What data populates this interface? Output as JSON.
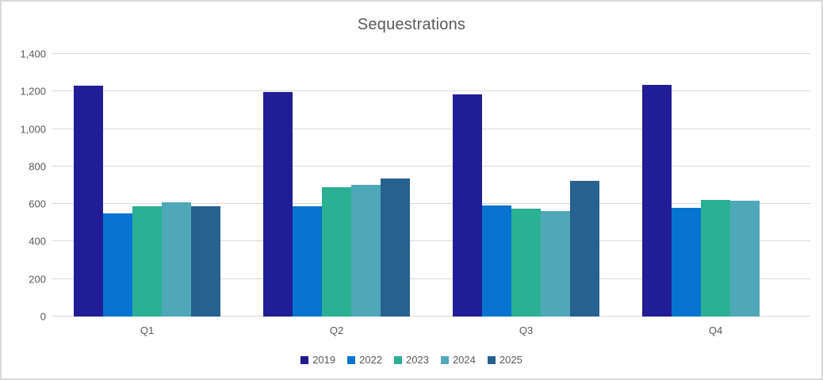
{
  "title": "Sequestrations",
  "colors": {
    "grid": "#d9d9d9",
    "text": "#595959",
    "background": "#ffffff",
    "border": "#d9d9d9"
  },
  "chart_data": {
    "type": "bar",
    "title": "Sequestrations",
    "categories": [
      "Q1",
      "Q2",
      "Q3",
      "Q4"
    ],
    "series": [
      {
        "name": "2019",
        "color": "#201d96",
        "values": [
          1232,
          1196,
          1184,
          1237
        ]
      },
      {
        "name": "2022",
        "color": "#0874d2",
        "values": [
          550,
          586,
          591,
          579
        ]
      },
      {
        "name": "2023",
        "color": "#2bb093",
        "values": [
          590,
          690,
          576,
          620
        ]
      },
      {
        "name": "2024",
        "color": "#4fa8b8",
        "values": [
          608,
          702,
          563,
          616
        ]
      },
      {
        "name": "2025",
        "color": "#27618f",
        "values": [
          590,
          737,
          722,
          null
        ]
      }
    ],
    "xlabel": "",
    "ylabel": "",
    "ylim": [
      0,
      1400
    ],
    "ytick_interval": 200,
    "ytick_labels": [
      "0",
      "200",
      "400",
      "600",
      "800",
      "1,000",
      "1,200",
      "1,400"
    ],
    "grid": true,
    "legend_position": "bottom"
  }
}
